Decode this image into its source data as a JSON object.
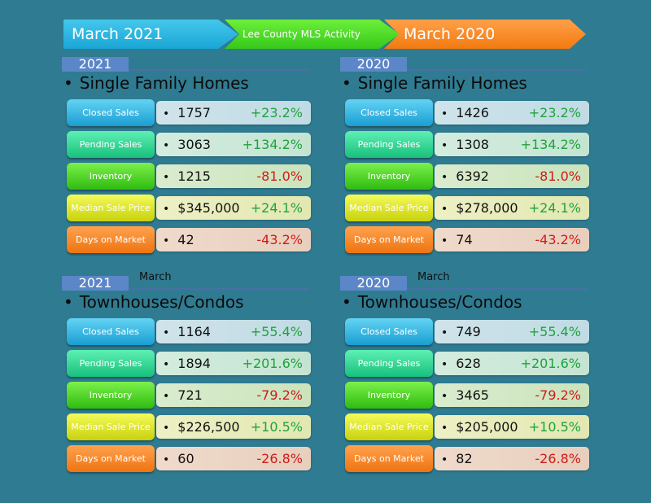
{
  "header": {
    "left_label": "March 2021",
    "middle_label": "Lee County MLS Activity",
    "right_label": "March 2020"
  },
  "sections": [
    {
      "year": "2021",
      "month_note": "",
      "title": "Single Family Homes",
      "rows": [
        {
          "label": "Closed Sales",
          "value": "1757",
          "change": "+23.2%"
        },
        {
          "label": "Pending Sales",
          "value": "3063",
          "change": "+134.2%"
        },
        {
          "label": "Inventory",
          "value": "1215",
          "change": "-81.0%"
        },
        {
          "label": "Median Sale Price",
          "value": "$345,000",
          "change": "+24.1%"
        },
        {
          "label": "Days on Market",
          "value": "42",
          "change": "-43.2%"
        }
      ]
    },
    {
      "year": "2020",
      "month_note": "",
      "title": "Single Family Homes",
      "rows": [
        {
          "label": "Closed Sales",
          "value": "1426",
          "change": "+23.2%"
        },
        {
          "label": "Pending Sales",
          "value": "1308",
          "change": "+134.2%"
        },
        {
          "label": "Inventory",
          "value": "6392",
          "change": "-81.0%"
        },
        {
          "label": "Median Sale Price",
          "value": "$278,000",
          "change": "+24.1%"
        },
        {
          "label": "Days on Market",
          "value": "74",
          "change": "-43.2%"
        }
      ]
    },
    {
      "year": "2021",
      "month_note": "March",
      "title": "Townhouses/Condos",
      "rows": [
        {
          "label": "Closed Sales",
          "value": "1164",
          "change": "+55.4%"
        },
        {
          "label": "Pending Sales",
          "value": "1894",
          "change": "+201.6%"
        },
        {
          "label": "Inventory",
          "value": "721",
          "change": "-79.2%"
        },
        {
          "label": "Median Sale Price",
          "value": "$226,500",
          "change": "+10.5%"
        },
        {
          "label": "Days on Market",
          "value": "60",
          "change": "-26.8%"
        }
      ]
    },
    {
      "year": "2020",
      "month_note": "March",
      "title": "Townhouses/Condos",
      "rows": [
        {
          "label": "Closed Sales",
          "value": "749",
          "change": "+55.4%"
        },
        {
          "label": "Pending Sales",
          "value": "628",
          "change": "+201.6%"
        },
        {
          "label": "Inventory",
          "value": "3465",
          "change": "-79.2%"
        },
        {
          "label": "Median Sale Price",
          "value": "$205,000",
          "change": "+10.5%"
        },
        {
          "label": "Days on Market",
          "value": "82",
          "change": "-26.8%"
        }
      ]
    }
  ],
  "colors": {
    "background": "#2f7b91",
    "positive": "#1fa33c",
    "negative": "#d11a1a",
    "closed_sales": "#1a9ed2",
    "pending_sales": "#18c07c",
    "inventory": "#2fbc10",
    "median_sale_price": "#c9d10c",
    "days_on_market": "#ee7410"
  }
}
